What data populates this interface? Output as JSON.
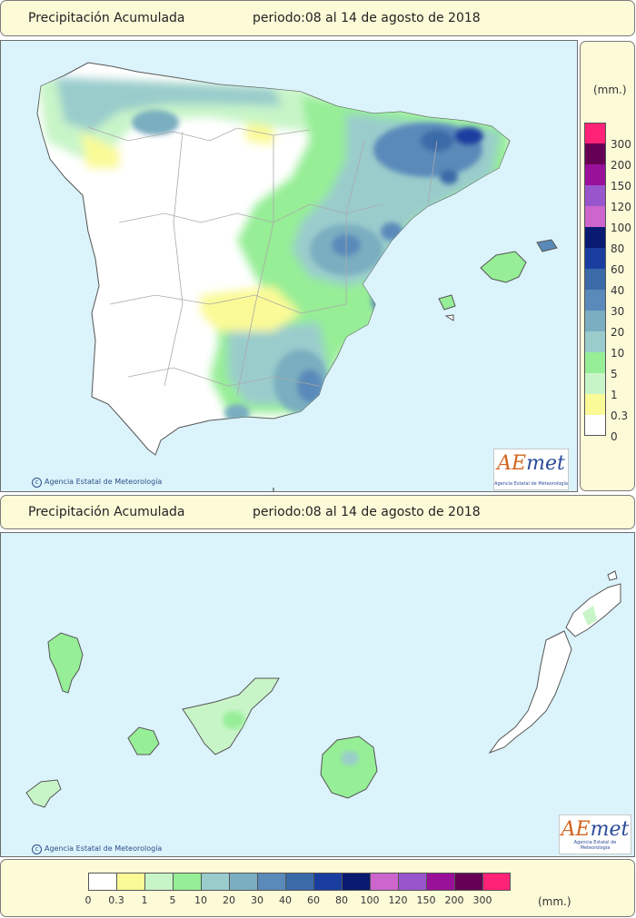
{
  "top_header": {
    "title": "Precipitación Acumulada",
    "period": "periodo:08 al 14 de agosto de 2018"
  },
  "bottom_header": {
    "title": "Precipitación Acumulada",
    "period": "periodo:08 al 14 de agosto de 2018"
  },
  "copyright_text": "Agencia Estatal de Meteorología",
  "logo": {
    "brand_a": "AE",
    "brand_b": "met",
    "subtitle": "Agencia Estatal de Meteorología"
  },
  "unit": "(mm.)",
  "legend": {
    "vertical_labels": [
      "300",
      "200",
      "150",
      "120",
      "100",
      "80",
      "60",
      "40",
      "30",
      "20",
      "10",
      "5",
      "1",
      "0.3",
      "0"
    ],
    "horizontal_labels": [
      "0",
      "0.3",
      "1",
      "5",
      "10",
      "20",
      "30",
      "40",
      "60",
      "80",
      "100",
      "120",
      "150",
      "200",
      "300"
    ],
    "class_colors": [
      "#ffffff",
      "#fafa96",
      "#c8f5c8",
      "#96ee96",
      "#9acccc",
      "#7aaec0",
      "#5a8aba",
      "#3a6aa8",
      "#1a3ea0",
      "#0a1a70",
      "#cc66cc",
      "#9955cc",
      "#991199",
      "#660055",
      "#ff2277"
    ]
  },
  "colors": {
    "sea": "#dbf3fb",
    "land_dry": "#ffffff",
    "header_bg": "#fdfad8",
    "border": "#6c6c6c"
  }
}
